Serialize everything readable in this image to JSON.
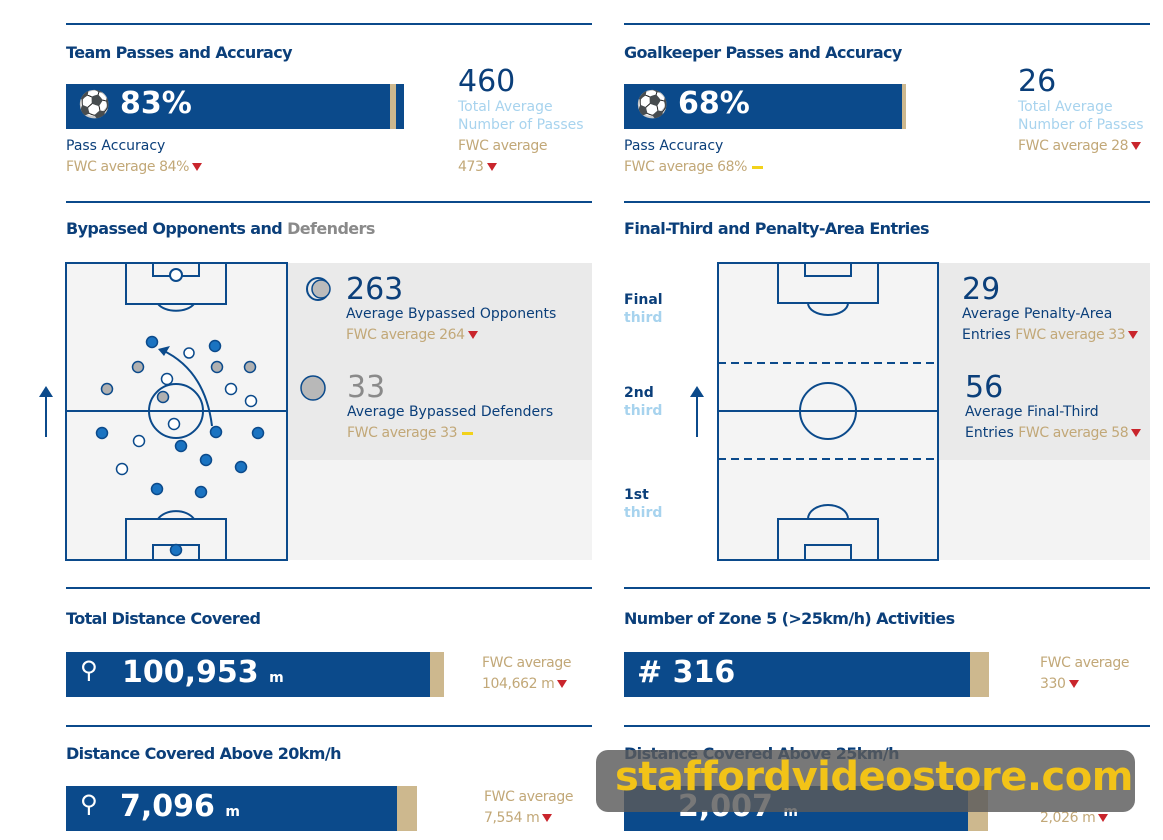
{
  "team_passes": {
    "title": "Team Passes and Accuracy",
    "value": "83%",
    "label": "Pass Accuracy",
    "fwc": "FWC average 84%",
    "total": "460",
    "total_label": "Total Average Number of Passes",
    "total_fwc_label": "FWC average",
    "total_fwc": "473"
  },
  "gk_passes": {
    "title": "Goalkeeper Passes and Accuracy",
    "value": "68%",
    "label": "Pass Accuracy",
    "fwc": "FWC average 68%",
    "total": "26",
    "total_label": "Total Average Number of Passes",
    "total_fwc": "FWC average 28"
  },
  "bypassed": {
    "title": "Bypassed Opponents and",
    "title_accent": "Defenders",
    "opponents": "263",
    "opponents_label": "Average Bypassed Opponents",
    "opponents_fwc": "FWC average 264",
    "defenders": "33",
    "defenders_label": "Average Bypassed Defenders",
    "defenders_fwc": "FWC average 33"
  },
  "entries": {
    "title": "Final-Third and Penalty-Area Entries",
    "thirds": [
      [
        "Final",
        "third"
      ],
      [
        "2nd",
        "third"
      ],
      [
        "1st",
        "third"
      ]
    ],
    "penalty": "29",
    "penalty_label": "Average Penalty-Area",
    "penalty_label2": "Entries",
    "penalty_fwc": "FWC average 33",
    "final": "56",
    "final_label": "Average Final-Third",
    "final_label2": "Entries",
    "final_fwc": "FWC average 58"
  },
  "distance": {
    "title": "Total Distance Covered",
    "value": "100,953",
    "unit": "m",
    "fwc_label": "FWC average",
    "fwc": "104,662 m"
  },
  "zone5": {
    "title": "Number of Zone 5 (>25km/h) Activities",
    "value": "# 316",
    "fwc_label": "FWC average",
    "fwc": "330"
  },
  "dist20": {
    "title": "Distance Covered Above 20km/h",
    "value": "7,096",
    "unit": "m",
    "fwc_label": "FWC average",
    "fwc": "7,554 m"
  },
  "dist25": {
    "title": "Distance Covered Above 25km/h",
    "value": "2,007",
    "unit": "m",
    "fwc": "2,026 m"
  },
  "watermark": "staffordvideostore.com"
}
